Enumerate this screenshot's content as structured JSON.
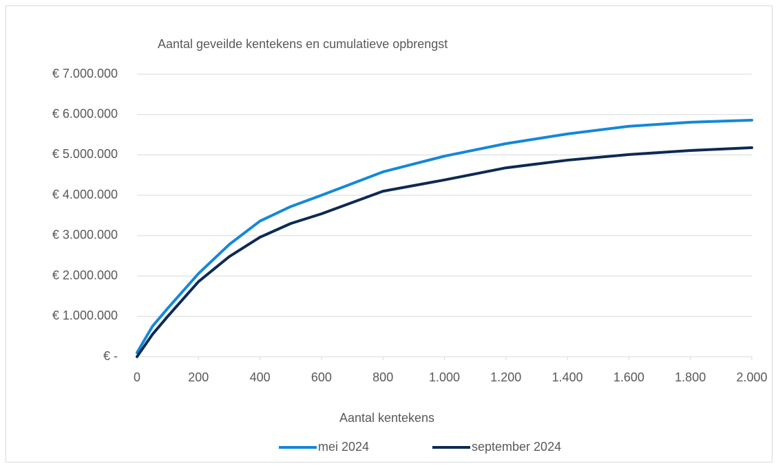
{
  "chart_data": {
    "type": "line",
    "title": "Aantal geveilde kentekens en cumulatieve opbrengst",
    "x_label": "Aantal kentekens",
    "x": [
      0,
      50,
      100,
      200,
      300,
      400,
      500,
      600,
      800,
      1000,
      1200,
      1400,
      1600,
      1800,
      2000
    ],
    "series": [
      {
        "name": "mei 2024",
        "color": "#1488d8",
        "values": [
          100000,
          750000,
          1200000,
          2060000,
          2780000,
          3360000,
          3720000,
          4000000,
          4580000,
          4970000,
          5280000,
          5520000,
          5710000,
          5810000,
          5860000
        ]
      },
      {
        "name": "september 2024",
        "color": "#0d2a52",
        "values": [
          0,
          550000,
          1000000,
          1860000,
          2480000,
          2960000,
          3300000,
          3540000,
          4100000,
          4380000,
          4680000,
          4870000,
          5010000,
          5110000,
          5180000
        ]
      }
    ],
    "xlim": [
      0,
      2000
    ],
    "xticks": [
      0,
      200,
      400,
      600,
      800,
      {
        "value": 1000,
        "label": "1.000"
      },
      {
        "value": 1200,
        "label": "1.200"
      },
      {
        "value": 1400,
        "label": "1.400"
      },
      {
        "value": 1600,
        "label": "1.600"
      },
      {
        "value": 1800,
        "label": "1.800"
      },
      {
        "value": 2000,
        "label": "2.000"
      }
    ],
    "ylim": [
      0,
      7000000
    ],
    "yticks": [
      {
        "value": 0,
        "label": "€ -"
      },
      {
        "value": 1000000,
        "label": "€ 1.000.000"
      },
      {
        "value": 2000000,
        "label": "€ 2.000.000"
      },
      {
        "value": 3000000,
        "label": "€ 3.000.000"
      },
      {
        "value": 4000000,
        "label": "€ 4.000.000"
      },
      {
        "value": 5000000,
        "label": "€ 5.000.000"
      },
      {
        "value": 6000000,
        "label": "€ 6.000.000"
      },
      {
        "value": 7000000,
        "label": "€ 7.000.000"
      }
    ],
    "grid": true,
    "legend": "bottom"
  }
}
